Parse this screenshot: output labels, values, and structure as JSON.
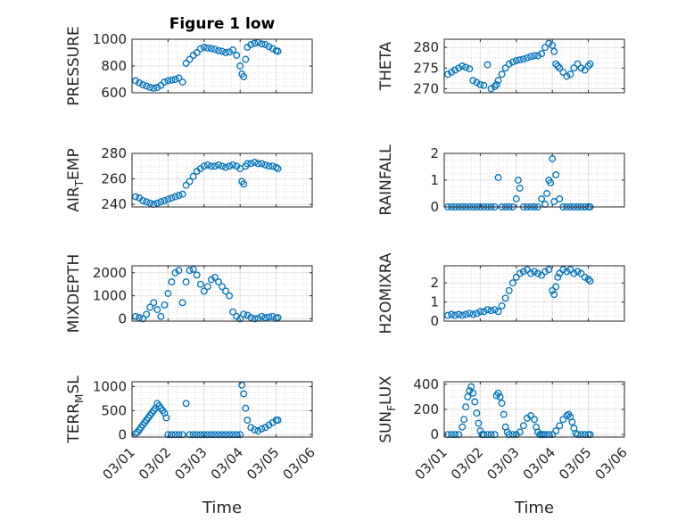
{
  "chart_data": [
    {
      "type": "scatter",
      "id": "pressure",
      "title": "Figure 1 low",
      "ylabel": "PRESSURE",
      "ylim": [
        600,
        1000
      ],
      "yticks": [
        600,
        800,
        1000
      ],
      "xlabel": "",
      "xlim": [
        0,
        5
      ],
      "xticklabels": [
        "03/01",
        "03/02",
        "03/03",
        "03/04",
        "03/05",
        "03/06"
      ],
      "grid": true,
      "minor_grid": true,
      "x": [
        0.1,
        0.2,
        0.3,
        0.4,
        0.5,
        0.6,
        0.7,
        0.8,
        0.9,
        1.0,
        1.1,
        1.2,
        1.3,
        1.4,
        1.5,
        1.6,
        1.7,
        1.8,
        1.9,
        2.0,
        2.1,
        2.2,
        2.3,
        2.4,
        2.5,
        2.6,
        2.7,
        2.8,
        2.9,
        3.0,
        3.05,
        3.1,
        3.15,
        3.2,
        3.3,
        3.4,
        3.5,
        3.6,
        3.7,
        3.8,
        3.9,
        4.0,
        4.05
      ],
      "y": [
        690,
        675,
        660,
        650,
        640,
        635,
        640,
        655,
        680,
        690,
        695,
        700,
        710,
        680,
        820,
        850,
        880,
        900,
        930,
        940,
        935,
        930,
        925,
        915,
        910,
        900,
        905,
        920,
        880,
        800,
        740,
        720,
        850,
        940,
        960,
        970,
        975,
        965,
        960,
        945,
        930,
        915,
        910
      ]
    },
    {
      "type": "scatter",
      "id": "theta",
      "title": "",
      "ylabel": "THETA",
      "ylim": [
        269,
        282
      ],
      "yticks": [
        270,
        275,
        280
      ],
      "xlabel": "",
      "xlim": [
        0,
        5
      ],
      "xticklabels": [
        "03/01",
        "03/02",
        "03/03",
        "03/04",
        "03/05",
        "03/06"
      ],
      "grid": true,
      "minor_grid": true,
      "x": [
        0.1,
        0.2,
        0.3,
        0.4,
        0.5,
        0.6,
        0.7,
        0.8,
        0.9,
        1.0,
        1.1,
        1.2,
        1.3,
        1.4,
        1.45,
        1.5,
        1.6,
        1.7,
        1.8,
        1.9,
        2.0,
        2.1,
        2.2,
        2.3,
        2.4,
        2.5,
        2.6,
        2.7,
        2.8,
        2.9,
        3.0,
        3.05,
        3.1,
        3.15,
        3.2,
        3.3,
        3.4,
        3.5,
        3.6,
        3.7,
        3.8,
        3.9,
        4.0,
        4.05
      ],
      "y": [
        273.5,
        274,
        274.5,
        275,
        275.5,
        275.2,
        274.8,
        272,
        271.5,
        271,
        270.8,
        275.8,
        270,
        270.5,
        271,
        272,
        273.5,
        275,
        276,
        276.5,
        276.8,
        277,
        277.2,
        277.5,
        277.8,
        278,
        278,
        278.5,
        280,
        281,
        280.5,
        279,
        276,
        275.5,
        275,
        274,
        273,
        273.5,
        275,
        276,
        275,
        274.5,
        275.5,
        276
      ]
    },
    {
      "type": "scatter",
      "id": "air_temp",
      "title": "",
      "ylabel": "AIR_TEMP",
      "ylim": [
        238,
        280
      ],
      "yticks": [
        240,
        260,
        280
      ],
      "xlabel": "",
      "xlim": [
        0,
        5
      ],
      "xticklabels": [
        "03/01",
        "03/02",
        "03/03",
        "03/04",
        "03/05",
        "03/06"
      ],
      "grid": true,
      "minor_grid": true,
      "x": [
        0.1,
        0.2,
        0.3,
        0.4,
        0.5,
        0.6,
        0.7,
        0.8,
        0.9,
        1.0,
        1.1,
        1.2,
        1.3,
        1.4,
        1.5,
        1.6,
        1.7,
        1.8,
        1.9,
        2.0,
        2.1,
        2.2,
        2.3,
        2.4,
        2.5,
        2.6,
        2.7,
        2.8,
        2.9,
        3.0,
        3.05,
        3.1,
        3.15,
        3.2,
        3.3,
        3.4,
        3.5,
        3.6,
        3.7,
        3.8,
        3.9,
        4.0,
        4.05
      ],
      "y": [
        246,
        245,
        243,
        242,
        241,
        240,
        241,
        242,
        243,
        244,
        245,
        246,
        247,
        248,
        255,
        258,
        262,
        266,
        268,
        270,
        271,
        270,
        270,
        271,
        270,
        269,
        270,
        271,
        270,
        268,
        258,
        256,
        270,
        272,
        272,
        273,
        272,
        272,
        271,
        270,
        270,
        269,
        268
      ]
    },
    {
      "type": "scatter",
      "id": "rainfall",
      "title": "",
      "ylabel": "RAINFALL",
      "ylim": [
        0,
        2
      ],
      "yticks": [
        0,
        1,
        2
      ],
      "xlabel": "",
      "xlim": [
        0,
        5
      ],
      "xticklabels": [
        "03/01",
        "03/02",
        "03/03",
        "03/04",
        "03/05",
        "03/06"
      ],
      "grid": true,
      "minor_grid": true,
      "x": [
        0.1,
        0.2,
        0.3,
        0.4,
        0.5,
        0.6,
        0.7,
        0.8,
        0.9,
        1.0,
        1.1,
        1.2,
        1.3,
        1.4,
        1.5,
        1.6,
        1.7,
        1.8,
        1.9,
        2.0,
        2.05,
        2.1,
        2.2,
        2.3,
        2.4,
        2.5,
        2.6,
        2.7,
        2.8,
        2.85,
        2.9,
        2.95,
        3.0,
        3.05,
        3.1,
        3.2,
        3.3,
        3.4,
        3.5,
        3.6,
        3.7,
        3.8,
        3.9,
        4.0,
        4.05
      ],
      "y": [
        0,
        0,
        0,
        0,
        0,
        0,
        0,
        0,
        0,
        0,
        0,
        0,
        0,
        0,
        1.1,
        0,
        0,
        0,
        0,
        0.3,
        1.0,
        0.7,
        0,
        0,
        0,
        0,
        0,
        0.3,
        0.1,
        0.5,
        1.0,
        0.9,
        1.8,
        0.2,
        1.2,
        0.3,
        0,
        0,
        0,
        0,
        0,
        0,
        0,
        0,
        0
      ]
    },
    {
      "type": "scatter",
      "id": "mixdepth",
      "title": "",
      "ylabel": "MIXDEPTH",
      "ylim": [
        -100,
        2300
      ],
      "yticks": [
        0,
        1000,
        2000
      ],
      "xlabel": "",
      "xlim": [
        0,
        5
      ],
      "xticklabels": [
        "03/01",
        "03/02",
        "03/03",
        "03/04",
        "03/05",
        "03/06"
      ],
      "grid": true,
      "minor_grid": true,
      "x": [
        0.1,
        0.2,
        0.3,
        0.4,
        0.5,
        0.6,
        0.7,
        0.8,
        0.9,
        1.0,
        1.1,
        1.2,
        1.3,
        1.4,
        1.5,
        1.6,
        1.7,
        1.8,
        1.9,
        2.0,
        2.1,
        2.2,
        2.3,
        2.4,
        2.5,
        2.6,
        2.7,
        2.8,
        2.9,
        3.0,
        3.1,
        3.2,
        3.3,
        3.4,
        3.5,
        3.6,
        3.7,
        3.8,
        3.9,
        4.0,
        4.05
      ],
      "y": [
        100,
        50,
        0,
        200,
        500,
        700,
        400,
        100,
        600,
        1100,
        1600,
        2000,
        2100,
        700,
        1600,
        2100,
        2150,
        1900,
        1500,
        1200,
        1400,
        1700,
        1800,
        1600,
        1400,
        1200,
        1000,
        300,
        100,
        0,
        200,
        150,
        50,
        0,
        20,
        100,
        50,
        80,
        100,
        20,
        50
      ]
    },
    {
      "type": "scatter",
      "id": "h2omixra",
      "title": "",
      "ylabel": "H2OMIXRA",
      "ylim": [
        0,
        2.9
      ],
      "yticks": [
        0,
        1,
        2
      ],
      "xlabel": "",
      "xlim": [
        0,
        5
      ],
      "xticklabels": [
        "03/01",
        "03/02",
        "03/03",
        "03/04",
        "03/05",
        "03/06"
      ],
      "grid": true,
      "minor_grid": true,
      "x": [
        0.1,
        0.2,
        0.3,
        0.4,
        0.5,
        0.6,
        0.7,
        0.8,
        0.9,
        1.0,
        1.1,
        1.2,
        1.3,
        1.4,
        1.5,
        1.6,
        1.7,
        1.8,
        1.9,
        2.0,
        2.1,
        2.2,
        2.3,
        2.4,
        2.5,
        2.6,
        2.7,
        2.8,
        2.9,
        3.0,
        3.05,
        3.1,
        3.15,
        3.2,
        3.3,
        3.4,
        3.5,
        3.6,
        3.7,
        3.8,
        3.9,
        4.0,
        4.05
      ],
      "y": [
        0.3,
        0.35,
        0.3,
        0.35,
        0.3,
        0.35,
        0.4,
        0.35,
        0.4,
        0.5,
        0.5,
        0.6,
        0.55,
        0.6,
        0.5,
        0.8,
        1.2,
        1.6,
        2.0,
        2.3,
        2.5,
        2.6,
        2.7,
        2.5,
        2.6,
        2.5,
        2.4,
        2.6,
        2.7,
        1.6,
        1.4,
        1.8,
        2.3,
        2.5,
        2.7,
        2.6,
        2.7,
        2.5,
        2.6,
        2.5,
        2.3,
        2.2,
        2.1
      ]
    },
    {
      "type": "scatter",
      "id": "terr_msl",
      "title": "",
      "ylabel": "TERR_MSL",
      "ylim": [
        -50,
        1100
      ],
      "yticks": [
        0,
        500,
        1000
      ],
      "xlabel": "Time",
      "xlim": [
        0,
        5
      ],
      "xticklabels": [
        "03/01",
        "03/02",
        "03/03",
        "03/04",
        "03/05",
        "03/06"
      ],
      "grid": true,
      "minor_grid": true,
      "x": [
        0.1,
        0.15,
        0.2,
        0.25,
        0.3,
        0.35,
        0.4,
        0.45,
        0.5,
        0.55,
        0.6,
        0.65,
        0.7,
        0.75,
        0.8,
        0.85,
        0.9,
        0.95,
        1.0,
        1.1,
        1.2,
        1.3,
        1.4,
        1.5,
        1.6,
        1.7,
        1.8,
        1.9,
        2.0,
        2.1,
        2.2,
        2.3,
        2.4,
        2.5,
        2.6,
        2.7,
        2.8,
        2.9,
        3.0,
        3.05,
        3.1,
        3.15,
        3.2,
        3.3,
        3.4,
        3.5,
        3.6,
        3.7,
        3.8,
        3.9,
        4.0,
        4.05
      ],
      "y": [
        20,
        50,
        100,
        150,
        200,
        250,
        300,
        350,
        400,
        450,
        500,
        550,
        650,
        600,
        550,
        500,
        450,
        350,
        0,
        0,
        0,
        0,
        0,
        650,
        0,
        0,
        0,
        0,
        0,
        0,
        0,
        0,
        0,
        0,
        0,
        0,
        0,
        0,
        0,
        1030,
        850,
        550,
        300,
        150,
        100,
        80,
        120,
        150,
        200,
        250,
        300,
        300
      ]
    },
    {
      "type": "scatter",
      "id": "sun_flux",
      "title": "",
      "ylabel": "SUN_FLUX",
      "ylim": [
        -20,
        420
      ],
      "yticks": [
        0,
        200,
        400
      ],
      "xlabel": "Time",
      "xlim": [
        0,
        5
      ],
      "xticklabels": [
        "03/01",
        "03/02",
        "03/03",
        "03/04",
        "03/05",
        "03/06"
      ],
      "grid": true,
      "minor_grid": true,
      "x": [
        0.1,
        0.2,
        0.3,
        0.4,
        0.5,
        0.55,
        0.6,
        0.65,
        0.7,
        0.75,
        0.8,
        0.85,
        0.9,
        0.95,
        1.0,
        1.05,
        1.1,
        1.2,
        1.3,
        1.4,
        1.45,
        1.5,
        1.55,
        1.6,
        1.65,
        1.7,
        1.75,
        1.8,
        1.9,
        2.0,
        2.1,
        2.2,
        2.3,
        2.4,
        2.5,
        2.55,
        2.6,
        2.65,
        2.7,
        2.75,
        2.8,
        2.9,
        3.0,
        3.1,
        3.2,
        3.3,
        3.4,
        3.45,
        3.5,
        3.55,
        3.6,
        3.65,
        3.7,
        3.8,
        3.9,
        4.0,
        4.05
      ],
      "y": [
        0,
        0,
        0,
        0,
        60,
        120,
        220,
        300,
        350,
        380,
        330,
        260,
        170,
        90,
        30,
        0,
        0,
        0,
        0,
        0,
        310,
        330,
        300,
        250,
        160,
        60,
        20,
        0,
        0,
        0,
        20,
        70,
        130,
        150,
        120,
        60,
        20,
        0,
        0,
        0,
        0,
        0,
        0,
        30,
        70,
        120,
        150,
        160,
        140,
        100,
        50,
        10,
        0,
        0,
        0,
        0,
        0
      ]
    }
  ],
  "colors": {
    "marker": "#0072BD",
    "axis": "#262626",
    "grid": "#dfdfdf"
  }
}
